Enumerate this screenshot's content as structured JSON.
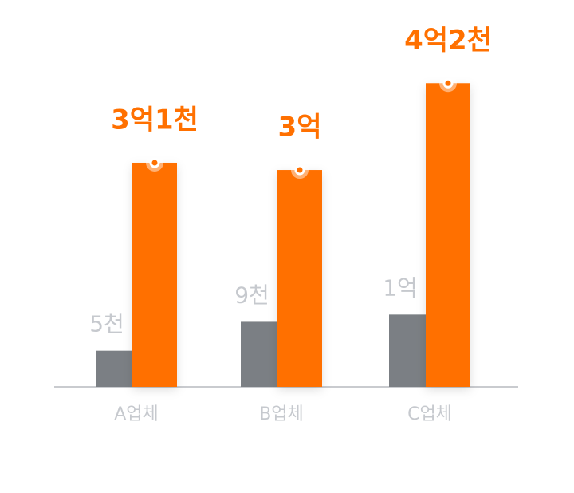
{
  "chart_data": {
    "type": "bar",
    "categories": [
      "A업체",
      "B업체",
      "C업체"
    ],
    "series": [
      {
        "color": "#7b7f84",
        "values": [
          50000000,
          90000000,
          100000000
        ],
        "value_labels": [
          "5천",
          "9천",
          "1억"
        ]
      },
      {
        "color": "#ff7000",
        "values": [
          310000000,
          300000000,
          420000000
        ],
        "value_labels": [
          "3억1천",
          "3억",
          "4억2천"
        ]
      }
    ],
    "ylim": [
      0,
      460000000
    ]
  }
}
